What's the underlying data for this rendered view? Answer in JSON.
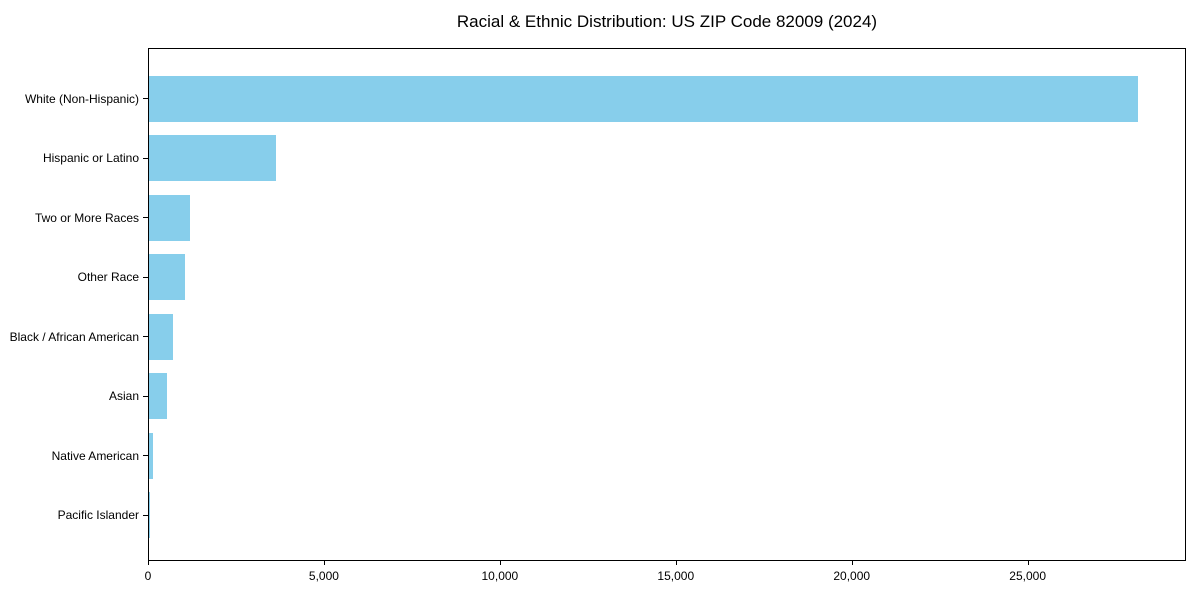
{
  "chart_data": {
    "type": "bar",
    "orientation": "horizontal",
    "title": "Racial & Ethnic Distribution: US ZIP Code 82009 (2024)",
    "categories": [
      "White (Non-Hispanic)",
      "Hispanic or Latino",
      "Two or More Races",
      "Other Race",
      "Black / African American",
      "Asian",
      "Native American",
      "Pacific Islander"
    ],
    "values": [
      28100,
      3610,
      1165,
      1020,
      680,
      510,
      115,
      10
    ],
    "xlabel": "",
    "ylabel": "",
    "xlim": [
      0,
      29500
    ],
    "xticks": [
      0,
      5000,
      10000,
      15000,
      20000,
      25000
    ],
    "xtick_labels": [
      "0",
      "5,000",
      "10,000",
      "15,000",
      "20,000",
      "25,000"
    ],
    "bar_color": "#87CEEB",
    "axis_color": "#000000",
    "text_color": "#000000",
    "background_color": "#ffffff",
    "grid": false,
    "legend": false
  }
}
